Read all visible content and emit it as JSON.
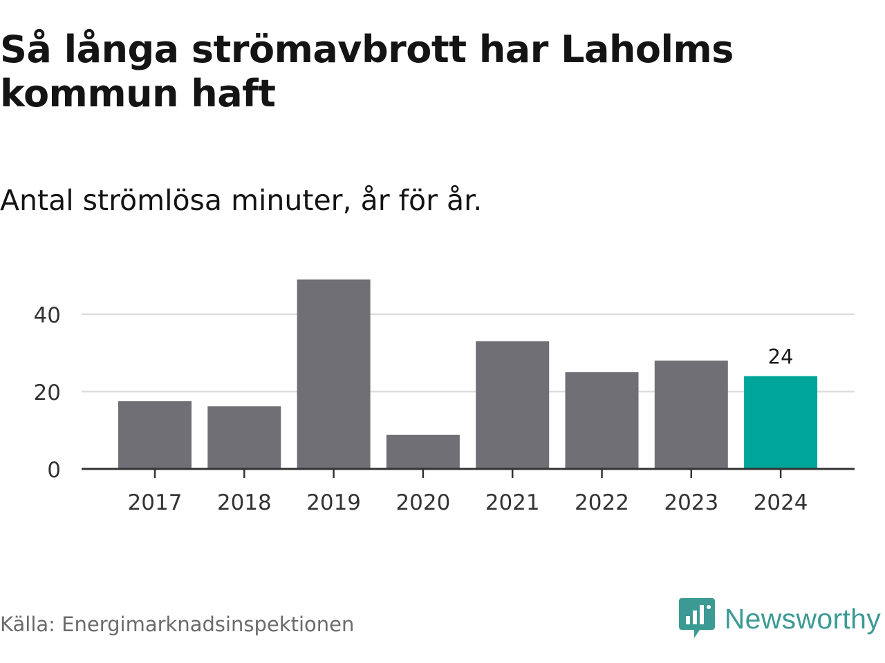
{
  "title": "Så långa strömavbrott har Laholms kommun haft",
  "subtitle": "Antal strömlösa minuter, år för år.",
  "source": "Källa: Energimarknadsinspektionen",
  "brand": {
    "name": "Newsworthy",
    "icon": "newsworthy-logo-icon",
    "color": "#3c9a94"
  },
  "colors": {
    "bar": "#706f75",
    "highlight": "#00a59a",
    "grid": "#dddddd",
    "axis": "#333333",
    "text": "#333333"
  },
  "chart_data": {
    "type": "bar",
    "title": "Så långa strömavbrott har Laholms kommun haft",
    "subtitle": "Antal strömlösa minuter, år för år.",
    "xlabel": "",
    "ylabel": "",
    "categories": [
      "2017",
      "2018",
      "2019",
      "2020",
      "2021",
      "2022",
      "2023",
      "2024"
    ],
    "values": [
      17.5,
      16.2,
      49,
      8.8,
      33,
      25,
      28,
      24
    ],
    "highlight_index": 7,
    "data_labels": [
      {
        "index": 7,
        "text": "24"
      }
    ],
    "ylim": [
      0,
      50
    ],
    "yticks": [
      0,
      20,
      40
    ],
    "grid": true,
    "legend": "none"
  }
}
